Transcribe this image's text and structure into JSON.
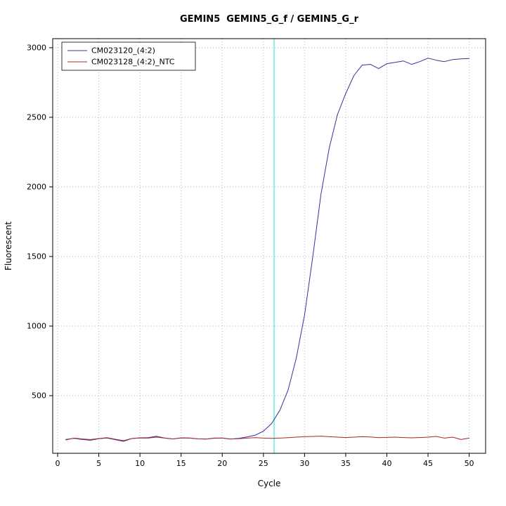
{
  "chart_data": {
    "type": "line",
    "title": "GEMIN5  GEMIN5_G_f / GEMIN5_G_r",
    "xlabel": "Cycle",
    "ylabel": "Fluorescent",
    "xlim": [
      -0.6,
      52
    ],
    "ylim": [
      86,
      3065
    ],
    "x_ticks": [
      0,
      5,
      10,
      15,
      20,
      25,
      30,
      35,
      40,
      45,
      50
    ],
    "y_ticks": [
      500,
      1000,
      1500,
      2000,
      2500,
      3000
    ],
    "grid": true,
    "legend_position": "top-left",
    "threshold_line": {
      "x": 26.3,
      "color": "#76e9e9"
    },
    "x": [
      1,
      2,
      3,
      4,
      5,
      6,
      7,
      8,
      9,
      10,
      11,
      12,
      13,
      14,
      15,
      16,
      17,
      18,
      19,
      20,
      21,
      22,
      23,
      24,
      25,
      26,
      27,
      28,
      29,
      30,
      31,
      32,
      33,
      34,
      35,
      36,
      37,
      38,
      39,
      40,
      41,
      42,
      43,
      44,
      45,
      46,
      47,
      48,
      49,
      50
    ],
    "series": [
      {
        "name": "CM023120_(4:2)",
        "color": "#333399",
        "values": [
          186,
          193,
          185,
          180,
          191,
          196,
          184,
          172,
          192,
          197,
          198,
          208,
          196,
          189,
          197,
          196,
          190,
          188,
          195,
          196,
          188,
          193,
          203,
          216,
          245,
          300,
          395,
          540,
          770,
          1080,
          1500,
          1950,
          2280,
          2520,
          2670,
          2800,
          2875,
          2880,
          2850,
          2885,
          2895,
          2905,
          2880,
          2900,
          2925,
          2910,
          2900,
          2915,
          2920,
          2922
        ]
      },
      {
        "name": "CM023128_(4:2)_NTC",
        "color": "#a52a2a",
        "values": [
          182,
          195,
          189,
          185,
          192,
          198,
          187,
          177,
          192,
          196,
          195,
          202,
          195,
          189,
          196,
          195,
          190,
          188,
          194,
          195,
          189,
          191,
          195,
          198,
          195,
          193,
          195,
          198,
          202,
          205,
          207,
          209,
          205,
          202,
          199,
          202,
          205,
          203,
          198,
          200,
          202,
          199,
          197,
          199,
          202,
          207,
          195,
          202,
          185,
          195
        ]
      }
    ],
    "styles": {
      "grid_color": "#b5b5b5",
      "axis_color": "#000000",
      "tick_font_px": 11,
      "axis_label_font_px": 12
    }
  }
}
